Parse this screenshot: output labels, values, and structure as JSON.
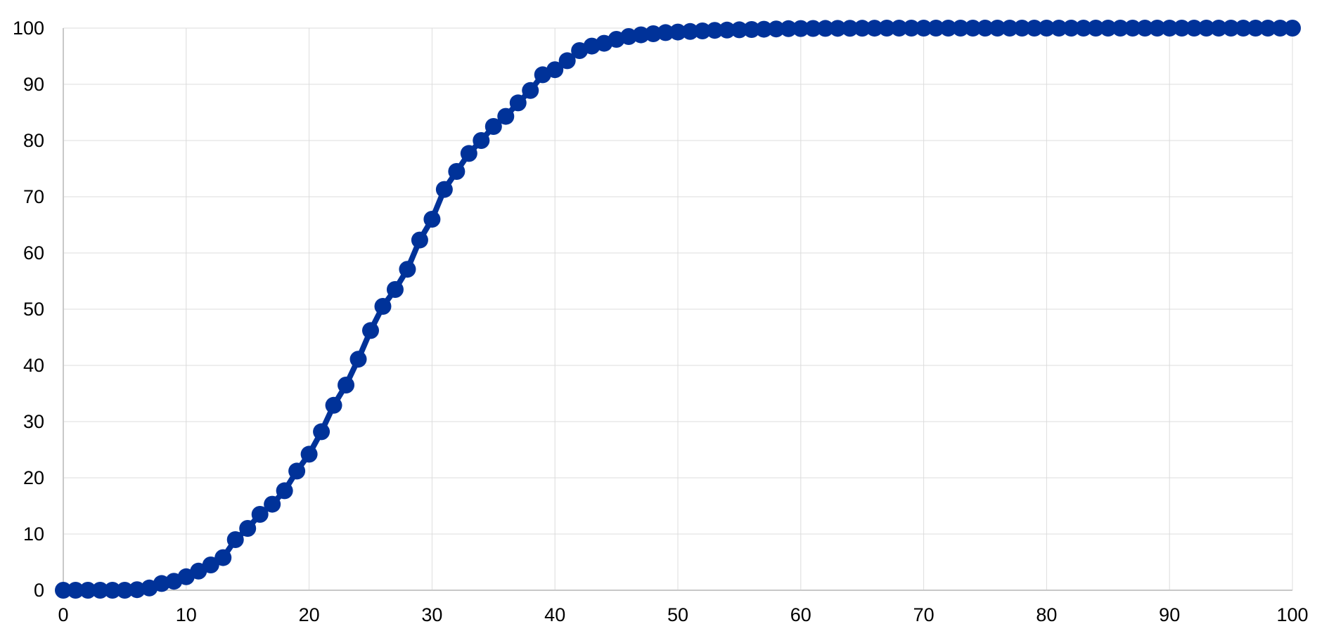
{
  "chart_data": {
    "type": "line",
    "title": "",
    "xlabel": "",
    "ylabel": "",
    "xlim": [
      0,
      100
    ],
    "ylim": [
      0,
      100
    ],
    "x_ticks": [
      0,
      10,
      20,
      30,
      40,
      50,
      60,
      70,
      80,
      90,
      100
    ],
    "y_ticks": [
      0,
      10,
      20,
      30,
      40,
      50,
      60,
      70,
      80,
      90,
      100
    ],
    "grid": true,
    "legend": "none",
    "markers": true,
    "color": "#003299",
    "series": [
      {
        "x": [
          0,
          1,
          2,
          3,
          4,
          5,
          6,
          7,
          8,
          9,
          10,
          11,
          12,
          13,
          14,
          15,
          16,
          17,
          18,
          19,
          20,
          21,
          22,
          23,
          24,
          25,
          26,
          27,
          28,
          29,
          30,
          31,
          32,
          33,
          34,
          35,
          36,
          37,
          38,
          39,
          40,
          41,
          42,
          43,
          44,
          45,
          46,
          47,
          48,
          49,
          50,
          51,
          52,
          53,
          54,
          55,
          56,
          57,
          58,
          59,
          60,
          61,
          62,
          63,
          64,
          65,
          66,
          67,
          68,
          69,
          70,
          71,
          72,
          73,
          74,
          75,
          76,
          77,
          78,
          79,
          80,
          81,
          82,
          83,
          84,
          85,
          86,
          87,
          88,
          89,
          90,
          91,
          92,
          93,
          94,
          95,
          96,
          97,
          98,
          99,
          100
        ],
        "values": [
          0,
          0,
          0,
          0,
          0,
          0,
          0.1,
          0.4,
          1.2,
          1.6,
          2.4,
          3.4,
          4.5,
          5.8,
          9,
          11,
          13.5,
          15.3,
          17.7,
          21.2,
          24.2,
          28.2,
          32.9,
          36.5,
          41.1,
          46.2,
          50.5,
          53.5,
          57.1,
          62.3,
          66,
          71.3,
          74.5,
          77.7,
          80,
          82.5,
          84.3,
          86.7,
          88.9,
          91.7,
          92.6,
          94.2,
          96,
          96.8,
          97.3,
          98,
          98.5,
          98.8,
          99,
          99.2,
          99.3,
          99.4,
          99.5,
          99.6,
          99.65,
          99.7,
          99.75,
          99.8,
          99.85,
          99.9,
          99.92,
          99.94,
          99.95,
          99.96,
          99.97,
          99.98,
          99.99,
          100,
          100,
          100,
          100,
          100,
          100,
          100,
          100,
          100,
          100,
          100,
          100,
          100,
          100,
          100,
          100,
          100,
          100,
          100,
          100,
          100,
          100,
          100,
          100,
          100,
          100,
          100,
          100,
          100,
          100,
          100,
          100,
          100,
          100
        ]
      }
    ]
  }
}
